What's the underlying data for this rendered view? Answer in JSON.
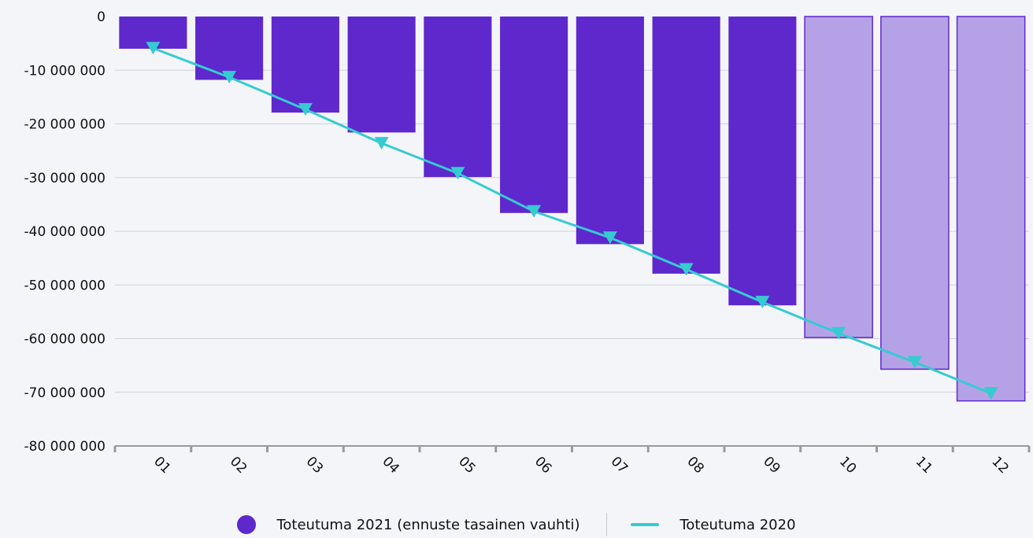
{
  "chart_data": {
    "type": "bar",
    "categories": [
      "01",
      "02",
      "03",
      "04",
      "05",
      "06",
      "07",
      "08",
      "09",
      "10",
      "11",
      "12"
    ],
    "series": [
      {
        "name": "Toteutuma 2021 (ennuste tasainen vauhti)",
        "kind": "bar",
        "values": [
          -6000000,
          -11800000,
          -17900000,
          -21600000,
          -29900000,
          -36600000,
          -42400000,
          -47900000,
          -53800000,
          -59800000,
          -65700000,
          -71600000
        ],
        "forecast_from_index": 9,
        "color": "#5e28cd",
        "forecast_color": "#b5a2e6"
      },
      {
        "name": "Toteutuma 2020",
        "kind": "line",
        "values": [
          -5900000,
          -11300000,
          -17300000,
          -23600000,
          -29200000,
          -36300000,
          -41200000,
          -47100000,
          -53200000,
          -59000000,
          -64400000,
          -70200000
        ],
        "color": "#35cbd1",
        "marker": "triangle-down"
      }
    ],
    "ylim": [
      -80000000,
      0
    ],
    "yticks": [
      0,
      -10000000,
      -20000000,
      -30000000,
      -40000000,
      -50000000,
      -60000000,
      -70000000,
      -80000000
    ],
    "ytick_labels": [
      "0",
      "-10 000 000",
      "-20 000 000",
      "-30 000 000",
      "-40 000 000",
      "-50 000 000",
      "-60 000 000",
      "-70 000 000",
      "-80 000 000"
    ],
    "title": "",
    "xlabel": "",
    "ylabel": "",
    "grid": true,
    "legend_position": "bottom"
  }
}
